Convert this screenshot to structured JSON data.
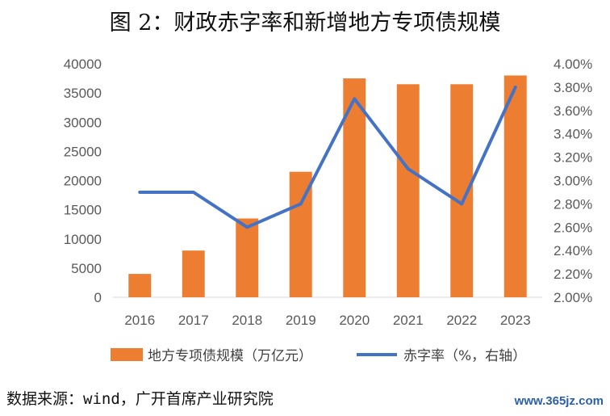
{
  "title": "图 2：财政赤字率和新增地方专项债规模",
  "source": "数据来源：wind，广开首席产业研究院",
  "watermark": "www.365jz.com",
  "chart_data": {
    "type": "bar",
    "categories": [
      "2016",
      "2017",
      "2018",
      "2019",
      "2020",
      "2021",
      "2022",
      "2023"
    ],
    "series": [
      {
        "name": "地方专项债规模（万亿元）",
        "type": "bar",
        "axis": "left",
        "color": "#ED7D31",
        "values": [
          4000,
          8000,
          13500,
          21500,
          37500,
          36500,
          36500,
          38000
        ]
      },
      {
        "name": "赤字率（%，右轴）",
        "type": "line",
        "axis": "right",
        "color": "#4472C4",
        "values": [
          2.9,
          2.9,
          2.6,
          2.8,
          3.7,
          3.1,
          2.8,
          3.8
        ]
      }
    ],
    "y_left": {
      "min": 0,
      "max": 40000,
      "step": 5000,
      "ticks": [
        "0",
        "5000",
        "10000",
        "15000",
        "20000",
        "25000",
        "30000",
        "35000",
        "40000"
      ]
    },
    "y_right": {
      "min": 2.0,
      "max": 4.0,
      "step": 0.2,
      "ticks": [
        "2.00%",
        "2.20%",
        "2.40%",
        "2.60%",
        "2.80%",
        "3.00%",
        "3.20%",
        "3.40%",
        "3.60%",
        "3.80%",
        "4.00%"
      ]
    },
    "legend_position": "bottom"
  }
}
